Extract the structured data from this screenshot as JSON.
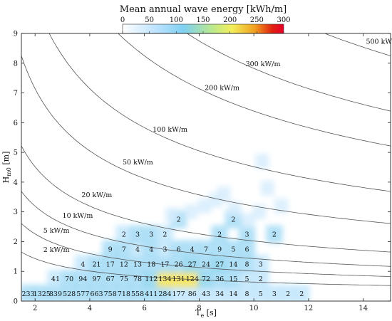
{
  "chart_data": {
    "type": "heatmap",
    "title": "Mean annual wave energy [kWh/m]",
    "colorbar": {
      "ticks": [
        0,
        50,
        100,
        150,
        200,
        250,
        300
      ],
      "range": [
        0,
        300
      ]
    },
    "xlabel": {
      "main": "T",
      "sub": "e",
      "unit": " [s]"
    },
    "ylabel": {
      "main": "H",
      "sub": "m0",
      "unit": " [m]"
    },
    "xlim": [
      1.5,
      15
    ],
    "ylim": [
      0,
      9
    ],
    "xticks": [
      2,
      4,
      6,
      8,
      10,
      12,
      14
    ],
    "yticks": [
      0,
      1,
      2,
      3,
      4,
      5,
      6,
      7,
      8,
      9
    ],
    "isolines": [
      {
        "label": "2 kW/m",
        "power": 2,
        "label_at": [
          2.3,
          1.65
        ]
      },
      {
        "label": "5 kW/m",
        "power": 5,
        "label_at": [
          2.3,
          2.3
        ]
      },
      {
        "label": "10 kW/m",
        "power": 10,
        "label_at": [
          3.0,
          2.8
        ]
      },
      {
        "label": "20 kW/m",
        "power": 20,
        "label_at": [
          3.7,
          3.5
        ]
      },
      {
        "label": "50 kW/m",
        "power": 50,
        "label_at": [
          5.2,
          4.6
        ]
      },
      {
        "label": "100 kW/m",
        "power": 100,
        "label_at": [
          6.3,
          5.7
        ]
      },
      {
        "label": "200 kW/m",
        "power": 200,
        "label_at": [
          8.2,
          7.1
        ]
      },
      {
        "label": "300 kW/m",
        "power": 300,
        "label_at": [
          9.7,
          7.9
        ]
      },
      {
        "label": "500 kW/m",
        "power": 500,
        "label_at": [
          14.1,
          8.65
        ]
      }
    ],
    "cells": [
      {
        "x": 1.75,
        "y": 0.25,
        "v": "233"
      },
      {
        "x": 2.25,
        "y": 0.25,
        "v": "1325"
      },
      {
        "x": 2.75,
        "y": 0.25,
        "v": "839"
      },
      {
        "x": 3.25,
        "y": 0.25,
        "v": "528"
      },
      {
        "x": 3.75,
        "y": 0.25,
        "v": "577"
      },
      {
        "x": 4.25,
        "y": 0.25,
        "v": "663"
      },
      {
        "x": 4.75,
        "y": 0.25,
        "v": "758"
      },
      {
        "x": 5.25,
        "y": 0.25,
        "v": "718"
      },
      {
        "x": 5.75,
        "y": 0.25,
        "v": "558"
      },
      {
        "x": 6.25,
        "y": 0.25,
        "v": "411"
      },
      {
        "x": 6.75,
        "y": 0.25,
        "v": "284"
      },
      {
        "x": 7.25,
        "y": 0.25,
        "v": "177"
      },
      {
        "x": 7.75,
        "y": 0.25,
        "v": "86"
      },
      {
        "x": 8.25,
        "y": 0.25,
        "v": "43"
      },
      {
        "x": 8.75,
        "y": 0.25,
        "v": "34"
      },
      {
        "x": 9.25,
        "y": 0.25,
        "v": "14"
      },
      {
        "x": 9.75,
        "y": 0.25,
        "v": "8"
      },
      {
        "x": 10.25,
        "y": 0.25,
        "v": "5"
      },
      {
        "x": 10.75,
        "y": 0.25,
        "v": "3"
      },
      {
        "x": 11.25,
        "y": 0.25,
        "v": "2"
      },
      {
        "x": 11.75,
        "y": 0.25,
        "v": "2"
      },
      {
        "x": 2.75,
        "y": 0.75,
        "v": "41"
      },
      {
        "x": 3.25,
        "y": 0.75,
        "v": "70"
      },
      {
        "x": 3.75,
        "y": 0.75,
        "v": "94"
      },
      {
        "x": 4.25,
        "y": 0.75,
        "v": "97"
      },
      {
        "x": 4.75,
        "y": 0.75,
        "v": "67"
      },
      {
        "x": 5.25,
        "y": 0.75,
        "v": "75"
      },
      {
        "x": 5.75,
        "y": 0.75,
        "v": "78"
      },
      {
        "x": 6.25,
        "y": 0.75,
        "v": "112"
      },
      {
        "x": 6.75,
        "y": 0.75,
        "v": "134"
      },
      {
        "x": 7.25,
        "y": 0.75,
        "v": "131"
      },
      {
        "x": 7.75,
        "y": 0.75,
        "v": "124"
      },
      {
        "x": 8.25,
        "y": 0.75,
        "v": "72"
      },
      {
        "x": 8.75,
        "y": 0.75,
        "v": "36"
      },
      {
        "x": 9.25,
        "y": 0.75,
        "v": "15"
      },
      {
        "x": 9.75,
        "y": 0.75,
        "v": "5"
      },
      {
        "x": 10.25,
        "y": 0.75,
        "v": "2"
      },
      {
        "x": 3.75,
        "y": 1.25,
        "v": "4"
      },
      {
        "x": 4.25,
        "y": 1.25,
        "v": "21"
      },
      {
        "x": 4.75,
        "y": 1.25,
        "v": "17"
      },
      {
        "x": 5.25,
        "y": 1.25,
        "v": "12"
      },
      {
        "x": 5.75,
        "y": 1.25,
        "v": "13"
      },
      {
        "x": 6.25,
        "y": 1.25,
        "v": "18"
      },
      {
        "x": 6.75,
        "y": 1.25,
        "v": "17"
      },
      {
        "x": 7.25,
        "y": 1.25,
        "v": "26"
      },
      {
        "x": 7.75,
        "y": 1.25,
        "v": "27"
      },
      {
        "x": 8.25,
        "y": 1.25,
        "v": "24"
      },
      {
        "x": 8.75,
        "y": 1.25,
        "v": "27"
      },
      {
        "x": 9.25,
        "y": 1.25,
        "v": "14"
      },
      {
        "x": 9.75,
        "y": 1.25,
        "v": "8"
      },
      {
        "x": 10.25,
        "y": 1.25,
        "v": "3"
      },
      {
        "x": 4.75,
        "y": 1.75,
        "v": "9"
      },
      {
        "x": 5.25,
        "y": 1.75,
        "v": "7"
      },
      {
        "x": 5.75,
        "y": 1.75,
        "v": "4"
      },
      {
        "x": 6.25,
        "y": 1.75,
        "v": "4"
      },
      {
        "x": 6.75,
        "y": 1.75,
        "v": "3"
      },
      {
        "x": 7.25,
        "y": 1.75,
        "v": "6"
      },
      {
        "x": 7.75,
        "y": 1.75,
        "v": "4"
      },
      {
        "x": 8.25,
        "y": 1.75,
        "v": "7"
      },
      {
        "x": 8.75,
        "y": 1.75,
        "v": "9"
      },
      {
        "x": 9.25,
        "y": 1.75,
        "v": "5"
      },
      {
        "x": 9.75,
        "y": 1.75,
        "v": "6"
      },
      {
        "x": 5.25,
        "y": 2.25,
        "v": "2"
      },
      {
        "x": 5.75,
        "y": 2.25,
        "v": "3"
      },
      {
        "x": 6.25,
        "y": 2.25,
        "v": "3"
      },
      {
        "x": 6.75,
        "y": 2.25,
        "v": "2"
      },
      {
        "x": 8.75,
        "y": 2.25,
        "v": "2"
      },
      {
        "x": 9.75,
        "y": 2.25,
        "v": "3"
      },
      {
        "x": 10.75,
        "y": 2.25,
        "v": "2"
      },
      {
        "x": 7.25,
        "y": 2.75,
        "v": "2"
      },
      {
        "x": 9.25,
        "y": 2.75,
        "v": "2"
      }
    ],
    "colors": {
      "scale": [
        "#ffffff",
        "#bfe3ff",
        "#7fd0f2",
        "#f2ee5a",
        "#f0a020",
        "#e02010",
        "#e8002a"
      ],
      "isoline": "#555555"
    }
  }
}
